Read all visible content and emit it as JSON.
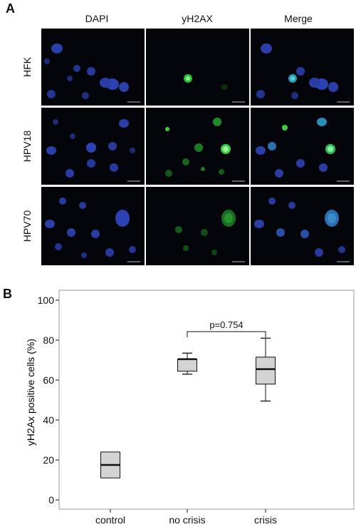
{
  "panel_a": {
    "letter": "A",
    "columns": [
      "DAPI",
      "yH2AX",
      "Merge"
    ],
    "rows": [
      "HFK",
      "HPV18",
      "HPV70"
    ]
  },
  "panel_b": {
    "letter": "B"
  },
  "chart_data": {
    "type": "box",
    "ylabel": "yH2Ax positive cells (%)",
    "xlabel": "",
    "ylim": [
      0,
      100
    ],
    "yticks": [
      0,
      20,
      40,
      60,
      80,
      100
    ],
    "categories": [
      "control",
      "no crisis",
      "crisis"
    ],
    "boxes": [
      {
        "category": "control",
        "min": 11,
        "q1": 11,
        "median": 17.5,
        "q3": 24,
        "max": 24
      },
      {
        "category": "no crisis",
        "min": 63,
        "q1": 64.5,
        "median": 70.5,
        "q3": 70.5,
        "max": 73.5
      },
      {
        "category": "crisis",
        "min": 49.5,
        "q1": 58,
        "median": 65.5,
        "q3": 71.5,
        "max": 81
      }
    ],
    "annotation": {
      "text": "p=0.754",
      "from": "no crisis",
      "to": "crisis"
    },
    "colors": {
      "box_fill": "#d3d3d3",
      "stroke": "#111111"
    }
  }
}
